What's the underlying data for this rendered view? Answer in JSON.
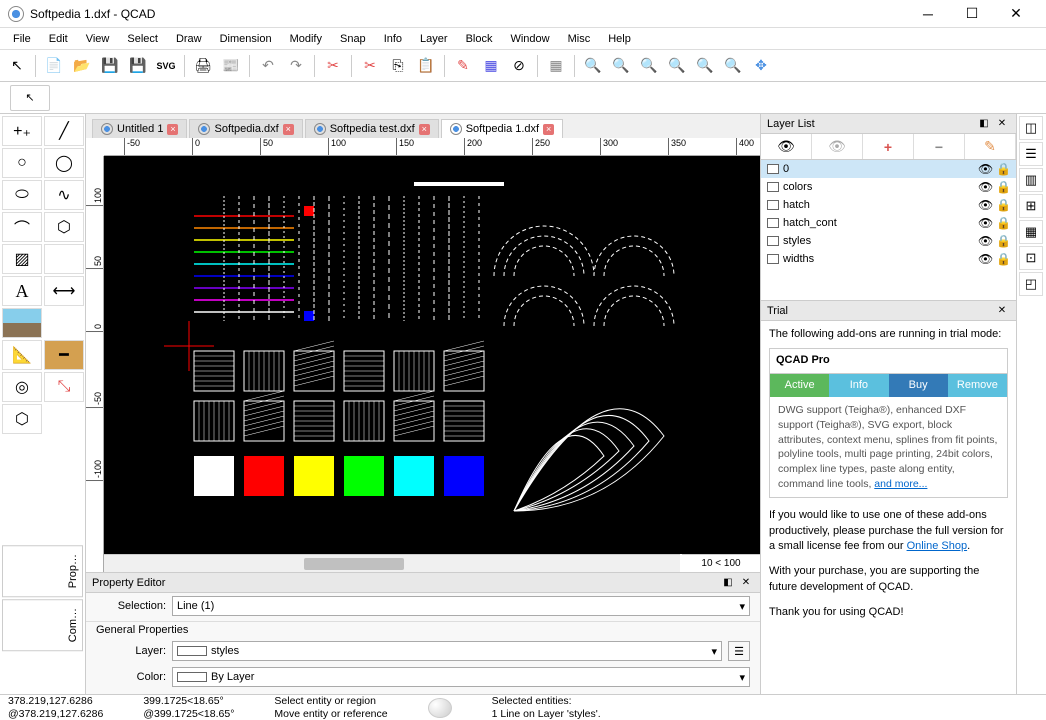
{
  "window": {
    "title": "Softpedia 1.dxf - QCAD"
  },
  "menu": [
    "File",
    "Edit",
    "View",
    "Select",
    "Draw",
    "Dimension",
    "Modify",
    "Snap",
    "Info",
    "Layer",
    "Block",
    "Window",
    "Misc",
    "Help"
  ],
  "tabs": [
    {
      "label": "Untitled 1",
      "active": false
    },
    {
      "label": "Softpedia.dxf",
      "active": false
    },
    {
      "label": "Softpedia test.dxf",
      "active": false
    },
    {
      "label": "Softpedia 1.dxf",
      "active": true
    }
  ],
  "ruler_h": [
    -50,
    0,
    50,
    100,
    150,
    200,
    250,
    300,
    350,
    400
  ],
  "ruler_v": [
    100,
    50,
    0,
    -50,
    -100
  ],
  "zoom_indicator": "10 < 100",
  "layer_panel": {
    "title": "Layer List",
    "layers": [
      {
        "name": "0",
        "selected": true
      },
      {
        "name": "colors",
        "selected": false
      },
      {
        "name": "hatch",
        "selected": false
      },
      {
        "name": "hatch_cont",
        "selected": false
      },
      {
        "name": "styles",
        "selected": false
      },
      {
        "name": "widths",
        "selected": false
      }
    ]
  },
  "trial_panel": {
    "title": "Trial",
    "intro": "The following add-ons are running in trial mode:",
    "product": "QCAD Pro",
    "tabs": [
      {
        "label": "Active",
        "color": "#5cb85c"
      },
      {
        "label": "Info",
        "color": "#5bc0de"
      },
      {
        "label": "Buy",
        "color": "#337ab7"
      },
      {
        "label": "Remove",
        "color": "#5bc0de"
      }
    ],
    "description": "DWG support (Teigha®), enhanced DXF support (Teigha®), SVG export, block attributes, context menu, splines from fit points, polyline tools, multi page printing, 24bit colors, complex line types, paste along entity, command line tools, ",
    "and_more": "and more...",
    "purchase_text1": "If you would like to use one of these add-ons productively, please purchase the full version for a small license fee from our ",
    "purchase_link": "Online Shop",
    "purchase_text2": "With your purchase, you are supporting the future development of QCAD.",
    "thanks": "Thank you for using QCAD!"
  },
  "property_editor": {
    "title": "Property Editor",
    "selection_label": "Selection:",
    "selection_value": "Line (1)",
    "general_label": "General Properties",
    "layer_label": "Layer:",
    "layer_value": "styles",
    "color_label": "Color:",
    "color_value": "By Layer"
  },
  "statusbar": {
    "coord1": "378.219,127.6286",
    "coord2": "@378.219,127.6286",
    "polar1": "399.1725<18.65°",
    "polar2": "@399.1725<18.65°",
    "hint1": "Select entity or region",
    "hint2": "Move entity or reference",
    "sel1": "Selected entities:",
    "sel2": "1 Line on Layer 'styles'."
  },
  "canvas_swatches": [
    "#ff0000",
    "#ffff00",
    "#00ff00",
    "#00ffff",
    "#0000ff"
  ],
  "canvas_lines": [
    "#ff0000",
    "#ff8800",
    "#ffff00",
    "#00ff00",
    "#00ffff",
    "#0000ff",
    "#8800ff",
    "#ff00ff",
    "#ffffff"
  ]
}
